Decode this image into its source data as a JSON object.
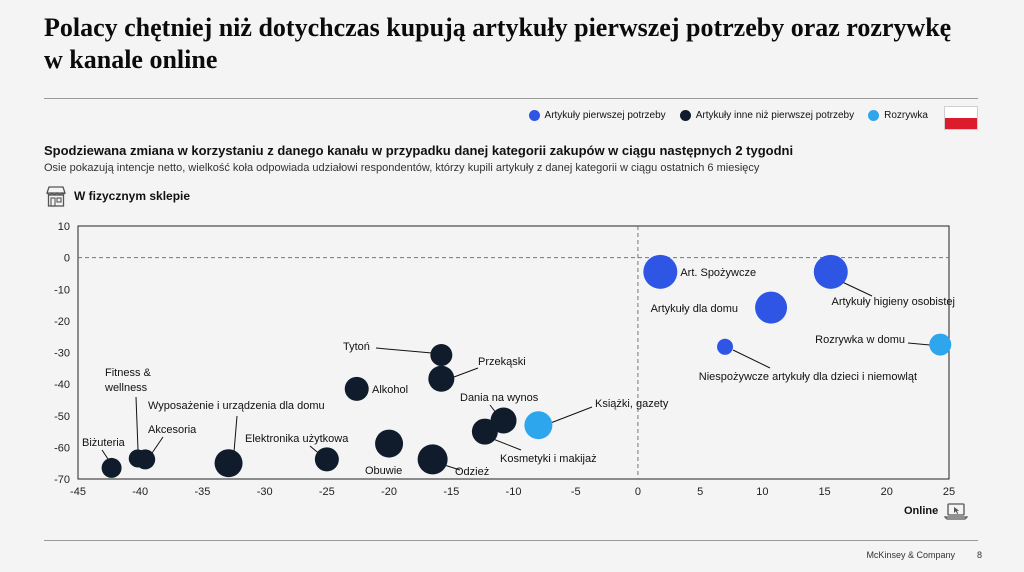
{
  "title": "Polacy chętniej niż dotychczas kupują artykuły pierwszej potrzeby oraz rozrywkę w kanale online",
  "legend": [
    {
      "label": "Artykuły pierwszej potrzeby",
      "color": "#2f55e4"
    },
    {
      "label": "Artykuły inne niż pierwszej potrzeby",
      "color": "#101c2c"
    },
    {
      "label": "Rozrywka",
      "color": "#2ea6ee"
    }
  ],
  "subtitle": "Spodziewana zmiana w korzystaniu z danego kanału w przypadku danej kategorii zakupów w ciągu następnych 2 tygodni",
  "note": "Osie pokazują intencje netto, wielkość koła odpowiada udziałowi respondentów, którzy kupili artykuły z danej kategorii w ciągu ostatnich 6 miesięcy",
  "store_label": "W fizycznym sklepie",
  "online_label": "Online",
  "footer": {
    "company": "McKinsey & Company",
    "page": "8"
  },
  "chart_data": {
    "type": "scatter",
    "xlabel": "Online",
    "ylabel": "W fizycznym sklepie",
    "xlim": [
      -45,
      25
    ],
    "ylim": [
      -70,
      10
    ],
    "xticks": [
      -45,
      -40,
      -35,
      -30,
      -25,
      -20,
      -15,
      -10,
      -5,
      0,
      5,
      10,
      15,
      20,
      25
    ],
    "yticks": [
      10,
      0,
      -10,
      -20,
      -30,
      -40,
      -50,
      -60,
      -70
    ],
    "reference_lines": {
      "x": 0,
      "y": 0,
      "style": "dashed"
    },
    "points": [
      {
        "name": "Art. Spożywcze",
        "label": "Art. Spożywcze",
        "group": "Artykuły pierwszej potrzeby",
        "x": 1.8,
        "y": -4.5,
        "size": 17
      },
      {
        "name": "Artykuły higieny osobistej",
        "label": "Artykuły higieny osobistej",
        "group": "Artykuły pierwszej potrzeby",
        "x": 15.5,
        "y": -4.5,
        "size": 17
      },
      {
        "name": "Artykuły dla domu",
        "label": "Artykuły dla domu",
        "group": "Artykuły pierwszej potrzeby",
        "x": 10.7,
        "y": -15.8,
        "size": 16
      },
      {
        "name": "Niespożywcze artykuły dla dzieci i niemowląt",
        "label": "Niespożywcze artykuły dla dzieci i niemowląt",
        "group": "Artykuły pierwszej potrzeby",
        "x": 7.0,
        "y": -28.2,
        "size": 8
      },
      {
        "name": "Rozrywka w domu",
        "label": "Rozrywka w domu",
        "group": "Rozrywka",
        "x": 24.3,
        "y": -27.5,
        "size": 11
      },
      {
        "name": "Książki, gazety",
        "label": "Książki, gazety",
        "group": "Rozrywka",
        "x": -8.0,
        "y": -53.0,
        "size": 14
      },
      {
        "name": "Tytoń",
        "label": "Tytoń",
        "group": "Artykuły inne niż pierwszej potrzeby",
        "x": -15.8,
        "y": -30.8,
        "size": 11
      },
      {
        "name": "Przekąski",
        "label": "Przekąski",
        "group": "Artykuły inne niż pierwszej potrzeby",
        "x": -15.8,
        "y": -38.3,
        "size": 13
      },
      {
        "name": "Alkohol",
        "label": "Alkohol",
        "group": "Artykuły inne niż pierwszej potrzeby",
        "x": -22.6,
        "y": -41.5,
        "size": 12
      },
      {
        "name": "Dania na wynos",
        "label": "Dania na wynos",
        "group": "Artykuły inne niż pierwszej potrzeby",
        "x": -10.8,
        "y": -51.5,
        "size": 13
      },
      {
        "name": "Kosmetyki i makijaż",
        "label": "Kosmetyki i makijaż",
        "group": "Artykuły inne niż pierwszej potrzeby",
        "x": -12.3,
        "y": -55.0,
        "size": 13
      },
      {
        "name": "Elektronika użytkowa",
        "label": "Elektronika użytkowa",
        "group": "Artykuły inne niż pierwszej potrzeby",
        "x": -25.0,
        "y": -63.8,
        "size": 12
      },
      {
        "name": "Obuwie",
        "label": "Obuwie",
        "group": "Artykuły inne niż pierwszej potrzeby",
        "x": -20.0,
        "y": -58.8,
        "size": 14
      },
      {
        "name": "Odzież",
        "label": "Odzież",
        "group": "Artykuły inne niż pierwszej potrzeby",
        "x": -16.5,
        "y": -63.8,
        "size": 15
      },
      {
        "name": "Wyposażenie i urządzenia dla domu",
        "label": "Wyposażenie i urządzenia dla domu",
        "group": "Artykuły inne niż pierwszej potrzeby",
        "x": -32.9,
        "y": -65.0,
        "size": 14
      },
      {
        "name": "Akcesoria",
        "label": "Akcesoria",
        "group": "Artykuły inne niż pierwszej potrzeby",
        "x": -39.6,
        "y": -63.8,
        "size": 10
      },
      {
        "name": "Fitness & wellness",
        "label": [
          "Fitness &",
          "wellness"
        ],
        "group": "Artykuły inne niż pierwszej potrzeby",
        "x": -40.2,
        "y": -63.5,
        "size": 9
      },
      {
        "name": "Biżuteria",
        "label": "Biżuteria",
        "group": "Artykuły inne niż pierwszej potrzeby",
        "x": -42.3,
        "y": -66.5,
        "size": 10
      }
    ]
  }
}
